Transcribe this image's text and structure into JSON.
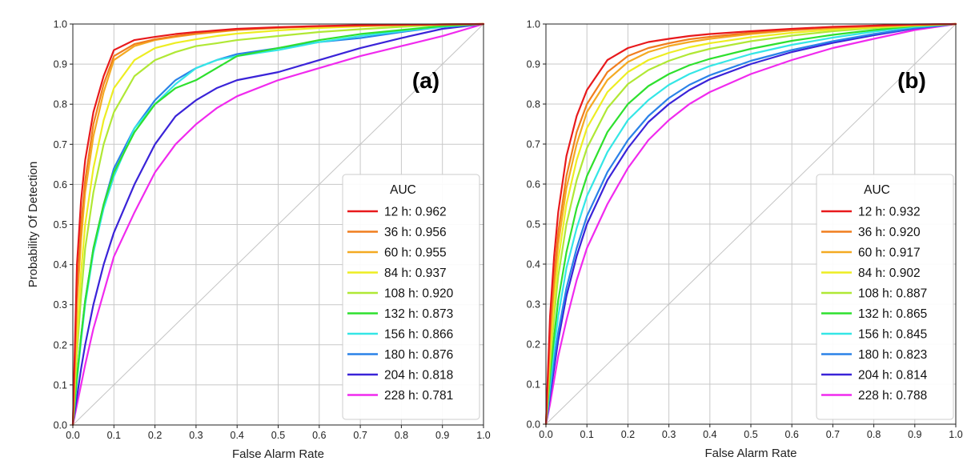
{
  "chart_data": [
    {
      "type": "line",
      "panel_label": "(a)",
      "xlabel": "False Alarm Rate",
      "ylabel": "Probability Of Detection",
      "xlim": [
        0,
        1
      ],
      "ylim": [
        0,
        1
      ],
      "xticks": [
        "0.0",
        "0.1",
        "0.2",
        "0.3",
        "0.4",
        "0.5",
        "0.6",
        "0.7",
        "0.8",
        "0.9",
        "1.0"
      ],
      "yticks": [
        "0.0",
        "0.1",
        "0.2",
        "0.3",
        "0.4",
        "0.5",
        "0.6",
        "0.7",
        "0.8",
        "0.9",
        "1.0"
      ],
      "grid": true,
      "diagonal_reference": true,
      "legend": {
        "title": "AUC",
        "placement": "lower-right"
      },
      "x": [
        0,
        0.01,
        0.02,
        0.03,
        0.05,
        0.075,
        0.1,
        0.15,
        0.2,
        0.25,
        0.3,
        0.35,
        0.4,
        0.5,
        0.6,
        0.7,
        0.8,
        0.9,
        1.0
      ],
      "series": [
        {
          "name": "12 h: 0.962",
          "color": "#e8191c",
          "values": [
            0,
            0.4,
            0.56,
            0.66,
            0.78,
            0.87,
            0.935,
            0.96,
            0.968,
            0.975,
            0.98,
            0.984,
            0.988,
            0.992,
            0.995,
            0.997,
            0.998,
            0.999,
            1.0
          ]
        },
        {
          "name": "36 h: 0.956",
          "color": "#f07e1e",
          "values": [
            0,
            0.33,
            0.5,
            0.61,
            0.75,
            0.85,
            0.92,
            0.95,
            0.962,
            0.97,
            0.976,
            0.981,
            0.986,
            0.991,
            0.994,
            0.996,
            0.998,
            0.999,
            1.0
          ]
        },
        {
          "name": "60 h: 0.955",
          "color": "#f4aa22",
          "values": [
            0,
            0.3,
            0.46,
            0.58,
            0.72,
            0.83,
            0.91,
            0.945,
            0.96,
            0.968,
            0.975,
            0.98,
            0.985,
            0.99,
            0.994,
            0.996,
            0.998,
            0.999,
            1.0
          ]
        },
        {
          "name": "84 h: 0.937",
          "color": "#eded22",
          "values": [
            0,
            0.22,
            0.38,
            0.5,
            0.64,
            0.76,
            0.84,
            0.91,
            0.94,
            0.953,
            0.962,
            0.97,
            0.976,
            0.984,
            0.99,
            0.994,
            0.997,
            0.999,
            1.0
          ]
        },
        {
          "name": "108 h: 0.920",
          "color": "#b0e835",
          "values": [
            0,
            0.18,
            0.32,
            0.44,
            0.58,
            0.7,
            0.78,
            0.87,
            0.91,
            0.93,
            0.945,
            0.952,
            0.96,
            0.97,
            0.98,
            0.987,
            0.993,
            0.998,
            1.0
          ]
        },
        {
          "name": "132 h: 0.873",
          "color": "#2ee02e",
          "values": [
            0,
            0.12,
            0.22,
            0.31,
            0.44,
            0.55,
            0.63,
            0.73,
            0.8,
            0.84,
            0.86,
            0.89,
            0.92,
            0.94,
            0.96,
            0.975,
            0.985,
            0.995,
            1.0
          ]
        },
        {
          "name": "156 h: 0.866",
          "color": "#34e6e6",
          "values": [
            0,
            0.11,
            0.21,
            0.3,
            0.43,
            0.54,
            0.62,
            0.74,
            0.8,
            0.85,
            0.89,
            0.91,
            0.92,
            0.935,
            0.955,
            0.97,
            0.982,
            0.993,
            1.0
          ]
        },
        {
          "name": "180 h: 0.876",
          "color": "#2a82e8",
          "values": [
            0,
            0.12,
            0.22,
            0.31,
            0.44,
            0.55,
            0.64,
            0.74,
            0.81,
            0.86,
            0.89,
            0.91,
            0.925,
            0.94,
            0.955,
            0.965,
            0.98,
            0.993,
            1.0
          ]
        },
        {
          "name": "204 h: 0.818",
          "color": "#3a23d8",
          "values": [
            0,
            0.07,
            0.14,
            0.2,
            0.3,
            0.4,
            0.48,
            0.6,
            0.7,
            0.77,
            0.81,
            0.84,
            0.86,
            0.88,
            0.91,
            0.94,
            0.965,
            0.988,
            1.0
          ]
        },
        {
          "name": "228 h: 0.781",
          "color": "#f02aee",
          "values": [
            0,
            0.05,
            0.1,
            0.15,
            0.24,
            0.33,
            0.42,
            0.53,
            0.63,
            0.7,
            0.75,
            0.79,
            0.82,
            0.86,
            0.89,
            0.92,
            0.945,
            0.97,
            1.0
          ]
        }
      ]
    },
    {
      "type": "line",
      "panel_label": "(b)",
      "xlabel": "False Alarm Rate",
      "ylabel": "",
      "xlim": [
        0,
        1
      ],
      "ylim": [
        0,
        1
      ],
      "xticks": [
        "0.0",
        "0.1",
        "0.2",
        "0.3",
        "0.4",
        "0.5",
        "0.6",
        "0.7",
        "0.8",
        "0.9",
        "1.0"
      ],
      "yticks": [
        "0.0",
        "0.1",
        "0.2",
        "0.3",
        "0.4",
        "0.5",
        "0.6",
        "0.7",
        "0.8",
        "0.9",
        "1.0"
      ],
      "grid": true,
      "diagonal_reference": true,
      "legend": {
        "title": "AUC",
        "placement": "lower-right"
      },
      "x": [
        0,
        0.01,
        0.02,
        0.03,
        0.05,
        0.075,
        0.1,
        0.15,
        0.2,
        0.25,
        0.3,
        0.35,
        0.4,
        0.5,
        0.6,
        0.7,
        0.8,
        0.9,
        1.0
      ],
      "series": [
        {
          "name": "12 h: 0.932",
          "color": "#e8191c",
          "values": [
            0,
            0.27,
            0.42,
            0.53,
            0.67,
            0.77,
            0.835,
            0.91,
            0.94,
            0.955,
            0.963,
            0.97,
            0.975,
            0.982,
            0.988,
            0.993,
            0.996,
            0.999,
            1.0
          ]
        },
        {
          "name": "36 h: 0.920",
          "color": "#f07e1e",
          "values": [
            0,
            0.23,
            0.37,
            0.48,
            0.62,
            0.73,
            0.8,
            0.88,
            0.92,
            0.94,
            0.952,
            0.962,
            0.968,
            0.978,
            0.986,
            0.991,
            0.995,
            0.998,
            1.0
          ]
        },
        {
          "name": "60 h: 0.917",
          "color": "#f4aa22",
          "values": [
            0,
            0.21,
            0.35,
            0.45,
            0.59,
            0.7,
            0.78,
            0.86,
            0.905,
            0.93,
            0.945,
            0.955,
            0.963,
            0.975,
            0.984,
            0.99,
            0.994,
            0.998,
            1.0
          ]
        },
        {
          "name": "84 h: 0.902",
          "color": "#eded22",
          "values": [
            0,
            0.18,
            0.31,
            0.41,
            0.55,
            0.66,
            0.74,
            0.83,
            0.88,
            0.91,
            0.928,
            0.942,
            0.952,
            0.967,
            0.978,
            0.986,
            0.992,
            0.997,
            1.0
          ]
        },
        {
          "name": "108 h: 0.887",
          "color": "#b0e835",
          "values": [
            0,
            0.15,
            0.27,
            0.37,
            0.5,
            0.61,
            0.69,
            0.79,
            0.85,
            0.885,
            0.908,
            0.925,
            0.938,
            0.957,
            0.971,
            0.982,
            0.99,
            0.996,
            1.0
          ]
        },
        {
          "name": "132 h: 0.865",
          "color": "#2ee02e",
          "values": [
            0,
            0.12,
            0.22,
            0.31,
            0.43,
            0.54,
            0.62,
            0.73,
            0.8,
            0.845,
            0.875,
            0.897,
            0.913,
            0.938,
            0.958,
            0.973,
            0.985,
            0.995,
            1.0
          ]
        },
        {
          "name": "156 h: 0.845",
          "color": "#34e6e6",
          "values": [
            0,
            0.1,
            0.19,
            0.27,
            0.39,
            0.49,
            0.57,
            0.68,
            0.76,
            0.81,
            0.848,
            0.875,
            0.895,
            0.925,
            0.948,
            0.966,
            0.981,
            0.993,
            1.0
          ]
        },
        {
          "name": "180 h: 0.823",
          "color": "#2a82e8",
          "values": [
            0,
            0.08,
            0.16,
            0.23,
            0.34,
            0.44,
            0.52,
            0.63,
            0.71,
            0.77,
            0.815,
            0.848,
            0.872,
            0.908,
            0.935,
            0.957,
            0.975,
            0.99,
            1.0
          ]
        },
        {
          "name": "204 h: 0.814",
          "color": "#3a23d8",
          "values": [
            0,
            0.07,
            0.14,
            0.21,
            0.32,
            0.42,
            0.5,
            0.61,
            0.69,
            0.755,
            0.8,
            0.835,
            0.862,
            0.9,
            0.93,
            0.953,
            0.972,
            0.989,
            1.0
          ]
        },
        {
          "name": "228 h: 0.788",
          "color": "#f02aee",
          "values": [
            0,
            0.05,
            0.11,
            0.17,
            0.26,
            0.36,
            0.44,
            0.55,
            0.64,
            0.71,
            0.76,
            0.8,
            0.83,
            0.875,
            0.91,
            0.94,
            0.963,
            0.985,
            1.0
          ]
        }
      ]
    }
  ]
}
